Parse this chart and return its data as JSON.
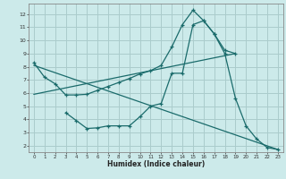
{
  "bg_color": "#cceaea",
  "grid_color": "#aacccc",
  "line_color": "#1a6b6b",
  "xlabel": "Humidex (Indice chaleur)",
  "xlim": [
    -0.5,
    23.5
  ],
  "ylim": [
    1.5,
    12.8
  ],
  "yticks": [
    2,
    3,
    4,
    5,
    6,
    7,
    8,
    9,
    10,
    11,
    12
  ],
  "xticks": [
    0,
    1,
    2,
    3,
    4,
    5,
    6,
    7,
    8,
    9,
    10,
    11,
    12,
    13,
    14,
    15,
    16,
    17,
    18,
    19,
    20,
    21,
    22,
    23
  ],
  "line1_x": [
    0,
    1,
    2,
    3,
    4,
    5,
    6,
    7,
    8,
    9,
    10,
    11,
    12,
    13,
    14,
    15,
    16,
    17,
    18,
    19
  ],
  "line1_y": [
    8.3,
    7.2,
    6.7,
    5.85,
    5.85,
    5.9,
    6.2,
    6.5,
    6.8,
    7.1,
    7.45,
    7.7,
    8.1,
    9.5,
    11.2,
    12.3,
    11.5,
    10.5,
    9.25,
    9.0
  ],
  "line2_x": [
    3,
    4,
    5,
    6,
    7,
    8,
    9,
    10,
    11,
    12,
    13,
    14,
    15,
    16,
    17,
    18,
    19,
    20,
    21,
    22,
    23
  ],
  "line2_y": [
    4.5,
    3.9,
    3.3,
    3.35,
    3.5,
    3.5,
    3.5,
    4.2,
    5.0,
    5.2,
    7.5,
    7.5,
    11.2,
    11.5,
    10.5,
    9.0,
    5.6,
    3.5,
    2.5,
    1.85,
    1.7
  ],
  "line3_x": [
    0,
    19
  ],
  "line3_y": [
    5.9,
    9.0
  ],
  "line4_x": [
    0,
    23
  ],
  "line4_y": [
    8.1,
    1.7
  ]
}
